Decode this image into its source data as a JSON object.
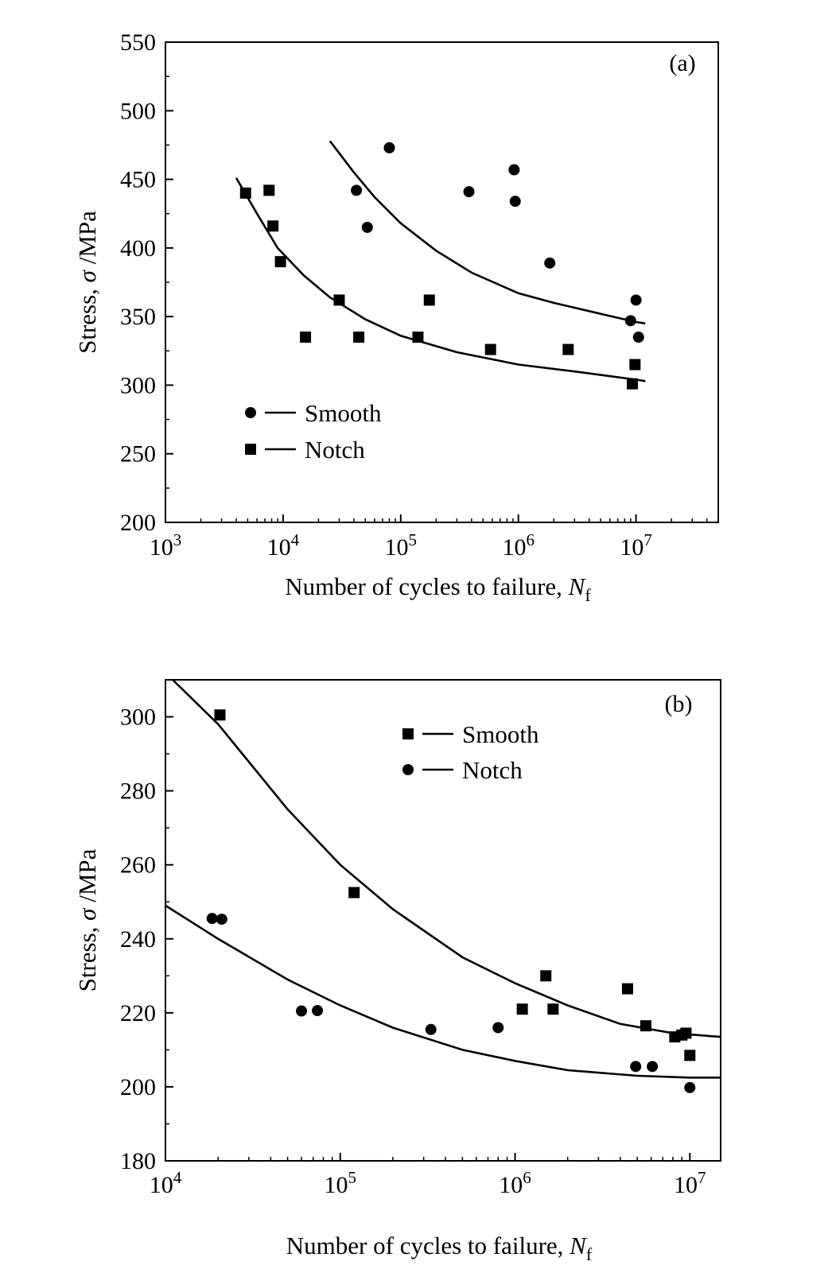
{
  "chart_data": [
    {
      "type": "scatter",
      "panel_label": "(a)",
      "xlabel": "Number of cycles to failure, ",
      "xlabel_sym": "N",
      "xlabel_sub": "f",
      "ylabel_pre": "Stress, ",
      "ylabel_sym": "σ",
      "ylabel_post": " /MPa",
      "xscale": "log",
      "xlim": [
        1000,
        50000000
      ],
      "ylim": [
        200,
        550
      ],
      "x_ticks": [
        {
          "value": 1000,
          "base": "10",
          "exp": "3"
        },
        {
          "value": 10000,
          "base": "10",
          "exp": "4"
        },
        {
          "value": 100000,
          "base": "10",
          "exp": "5"
        },
        {
          "value": 1000000,
          "base": "10",
          "exp": "6"
        },
        {
          "value": 10000000,
          "base": "10",
          "exp": "7"
        }
      ],
      "y_ticks": [
        "200",
        "250",
        "300",
        "350",
        "400",
        "450",
        "500",
        "550"
      ],
      "legend_position": "lower-left",
      "grid": false,
      "series": [
        {
          "name": "Smooth",
          "marker": "circle",
          "points": [
            [
              42000,
              442
            ],
            [
              52000,
              415
            ],
            [
              80000,
              473
            ],
            [
              380000,
              441
            ],
            [
              920000,
              457
            ],
            [
              940000,
              434
            ],
            [
              1850000,
              389
            ],
            [
              9000000,
              347
            ],
            [
              10000000,
              362
            ],
            [
              10500000,
              335
            ]
          ],
          "curve": [
            [
              25000,
              478
            ],
            [
              40000,
              455
            ],
            [
              60000,
              437
            ],
            [
              100000,
              418
            ],
            [
              200000,
              398
            ],
            [
              400000,
              382
            ],
            [
              1000000,
              367
            ],
            [
              2000000,
              360
            ],
            [
              5000000,
              352
            ],
            [
              10000000,
              346
            ],
            [
              12000000,
              345
            ]
          ]
        },
        {
          "name": "Notch",
          "marker": "square",
          "points": [
            [
              4800,
              440
            ],
            [
              7600,
              442
            ],
            [
              8200,
              416
            ],
            [
              9500,
              390
            ],
            [
              15500,
              335
            ],
            [
              30000,
              362
            ],
            [
              44000,
              335
            ],
            [
              140000,
              335
            ],
            [
              175000,
              362
            ],
            [
              580000,
              326
            ],
            [
              2650000,
              326
            ],
            [
              9300000,
              301
            ],
            [
              9800000,
              315
            ]
          ],
          "curve": [
            [
              4000,
              451
            ],
            [
              6000,
              425
            ],
            [
              9000,
              400
            ],
            [
              15000,
              380
            ],
            [
              25000,
              364
            ],
            [
              50000,
              348
            ],
            [
              100000,
              336
            ],
            [
              300000,
              324
            ],
            [
              1000000,
              315
            ],
            [
              3000000,
              310
            ],
            [
              10000000,
              304
            ],
            [
              12000000,
              303
            ]
          ]
        }
      ]
    },
    {
      "type": "scatter",
      "panel_label": "(b)",
      "xlabel": "Number of cycles to failure, ",
      "xlabel_sym": "N",
      "xlabel_sub": "f",
      "ylabel_pre": "Stress, ",
      "ylabel_sym": "σ",
      "ylabel_post": " /MPa",
      "xscale": "log",
      "xlim": [
        10000,
        15000000
      ],
      "ylim": [
        180,
        310
      ],
      "x_ticks": [
        {
          "value": 10000,
          "base": "10",
          "exp": "4"
        },
        {
          "value": 100000,
          "base": "10",
          "exp": "5"
        },
        {
          "value": 1000000,
          "base": "10",
          "exp": "6"
        },
        {
          "value": 10000000,
          "base": "10",
          "exp": "7"
        }
      ],
      "y_ticks": [
        "180",
        "200",
        "220",
        "240",
        "260",
        "280",
        "300"
      ],
      "legend_position": "top-center",
      "grid": false,
      "series": [
        {
          "name": "Smooth",
          "marker": "square",
          "points": [
            [
              20500,
              300.5
            ],
            [
              120000,
              252.5
            ],
            [
              1100000,
              221
            ],
            [
              1500000,
              230
            ],
            [
              1650000,
              221
            ],
            [
              4400000,
              226.5
            ],
            [
              5600000,
              216.5
            ],
            [
              8200000,
              213.5
            ],
            [
              9000000,
              214
            ],
            [
              9500000,
              214.5
            ],
            [
              10000000,
              208.5
            ]
          ],
          "curve": [
            [
              11000,
              310
            ],
            [
              20000,
              298
            ],
            [
              50000,
              275
            ],
            [
              100000,
              260
            ],
            [
              200000,
              248
            ],
            [
              500000,
              235
            ],
            [
              1000000,
              228
            ],
            [
              2000000,
              222
            ],
            [
              4000000,
              217
            ],
            [
              8000000,
              214.5
            ],
            [
              15000000,
              213.5
            ]
          ]
        },
        {
          "name": "Notch",
          "marker": "circle",
          "points": [
            [
              18500,
              245.5
            ],
            [
              21000,
              245.3
            ],
            [
              60000,
              220.5
            ],
            [
              74000,
              220.6
            ],
            [
              330000,
              215.5
            ],
            [
              800000,
              216
            ],
            [
              4900000,
              205.5
            ],
            [
              6100000,
              205.5
            ],
            [
              10000000,
              199.8
            ]
          ],
          "curve": [
            [
              10000,
              249
            ],
            [
              20000,
              240
            ],
            [
              50000,
              229
            ],
            [
              100000,
              222
            ],
            [
              200000,
              216
            ],
            [
              500000,
              210
            ],
            [
              1000000,
              207
            ],
            [
              2000000,
              204.5
            ],
            [
              5000000,
              203
            ],
            [
              10000000,
              202.5
            ],
            [
              15000000,
              202.5
            ]
          ]
        }
      ]
    }
  ]
}
